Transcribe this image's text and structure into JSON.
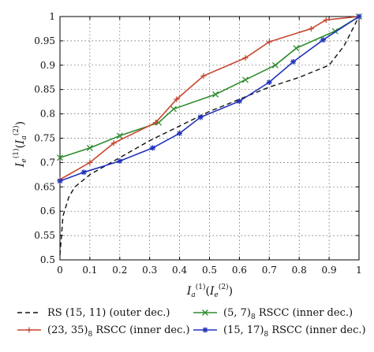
{
  "chart_data": {
    "type": "line",
    "xlim": [
      0,
      1
    ],
    "ylim": [
      0.5,
      1
    ],
    "xticks": [
      "0",
      "0.1",
      "0.2",
      "0.3",
      "0.4",
      "0.5",
      "0.6",
      "0.7",
      "0.8",
      "0.9",
      "1"
    ],
    "yticks": [
      "0.5",
      "0.55",
      "0.6",
      "0.65",
      "0.7",
      "0.75",
      "0.8",
      "0.85",
      "0.9",
      "0.95",
      "1"
    ],
    "grid": true,
    "legend_position": "bottom",
    "series": [
      {
        "name": "RS (15, 11) (outer dec.)",
        "name_main": "RS (15, 11) (outer dec.)",
        "name_sub": "",
        "name_rest": "",
        "color": "#111111",
        "line_style": "dashed",
        "marker": "none",
        "x": [
          0,
          0.01,
          0.03,
          0.05,
          0.1,
          0.2,
          0.3,
          0.4,
          0.5,
          0.6,
          0.7,
          0.8,
          0.9,
          0.95,
          1
        ],
        "y": [
          0.51,
          0.59,
          0.63,
          0.65,
          0.675,
          0.71,
          0.745,
          0.775,
          0.805,
          0.83,
          0.855,
          0.875,
          0.9,
          0.94,
          1
        ]
      },
      {
        "name": "(5, 7)8 RSCC (inner dec.)",
        "name_main": "(5, 7)",
        "name_sub": "8",
        "name_rest": " RSCC (inner dec.)",
        "color": "#2e8b2e",
        "line_style": "solid",
        "marker": "x",
        "x": [
          0,
          0.1,
          0.2,
          0.33,
          0.38,
          0.52,
          0.62,
          0.72,
          0.79,
          0.92,
          1
        ],
        "y": [
          0.71,
          0.73,
          0.755,
          0.782,
          0.81,
          0.84,
          0.87,
          0.9,
          0.935,
          0.97,
          1
        ]
      },
      {
        "name": "(23, 35)8 RSCC (inner dec.)",
        "name_main": "(23, 35)",
        "name_sub": "8",
        "name_rest": " RSCC (inner dec.)",
        "color": "#c8462f",
        "line_style": "solid",
        "marker": "+",
        "x": [
          0,
          0.1,
          0.18,
          0.32,
          0.39,
          0.48,
          0.62,
          0.7,
          0.84,
          0.89,
          1
        ],
        "y": [
          0.665,
          0.7,
          0.74,
          0.782,
          0.83,
          0.878,
          0.915,
          0.948,
          0.975,
          0.993,
          1
        ]
      },
      {
        "name": "(15, 17)8 RSCC (inner dec.)",
        "name_main": "(15, 17)",
        "name_sub": "8",
        "name_rest": " RSCC (inner dec.)",
        "color": "#2233bb",
        "line_style": "solid",
        "marker": "*",
        "x": [
          0,
          0.08,
          0.2,
          0.31,
          0.4,
          0.47,
          0.6,
          0.7,
          0.78,
          0.88,
          1
        ],
        "y": [
          0.662,
          0.68,
          0.703,
          0.73,
          0.76,
          0.793,
          0.826,
          0.865,
          0.907,
          0.952,
          1
        ]
      }
    ]
  }
}
